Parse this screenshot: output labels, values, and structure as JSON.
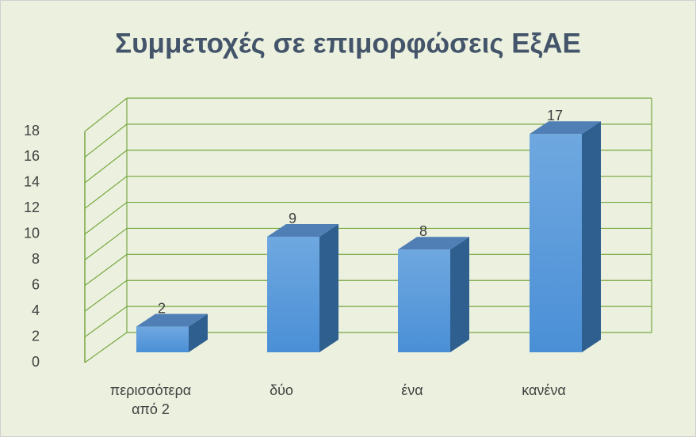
{
  "chart_data": {
    "type": "bar3d",
    "title": "Συμμετοχές σε επιμορφώσεις ΕξΑΕ",
    "categories": [
      "περισσότερα από 2",
      "δύο",
      "ένα",
      "κανένα"
    ],
    "values": [
      2,
      9,
      8,
      17
    ],
    "color": "#5b9bd5",
    "ylim": [
      0,
      18
    ],
    "yticks": [
      0,
      2,
      4,
      6,
      8,
      10,
      12,
      14,
      16,
      18
    ],
    "grid": true
  }
}
